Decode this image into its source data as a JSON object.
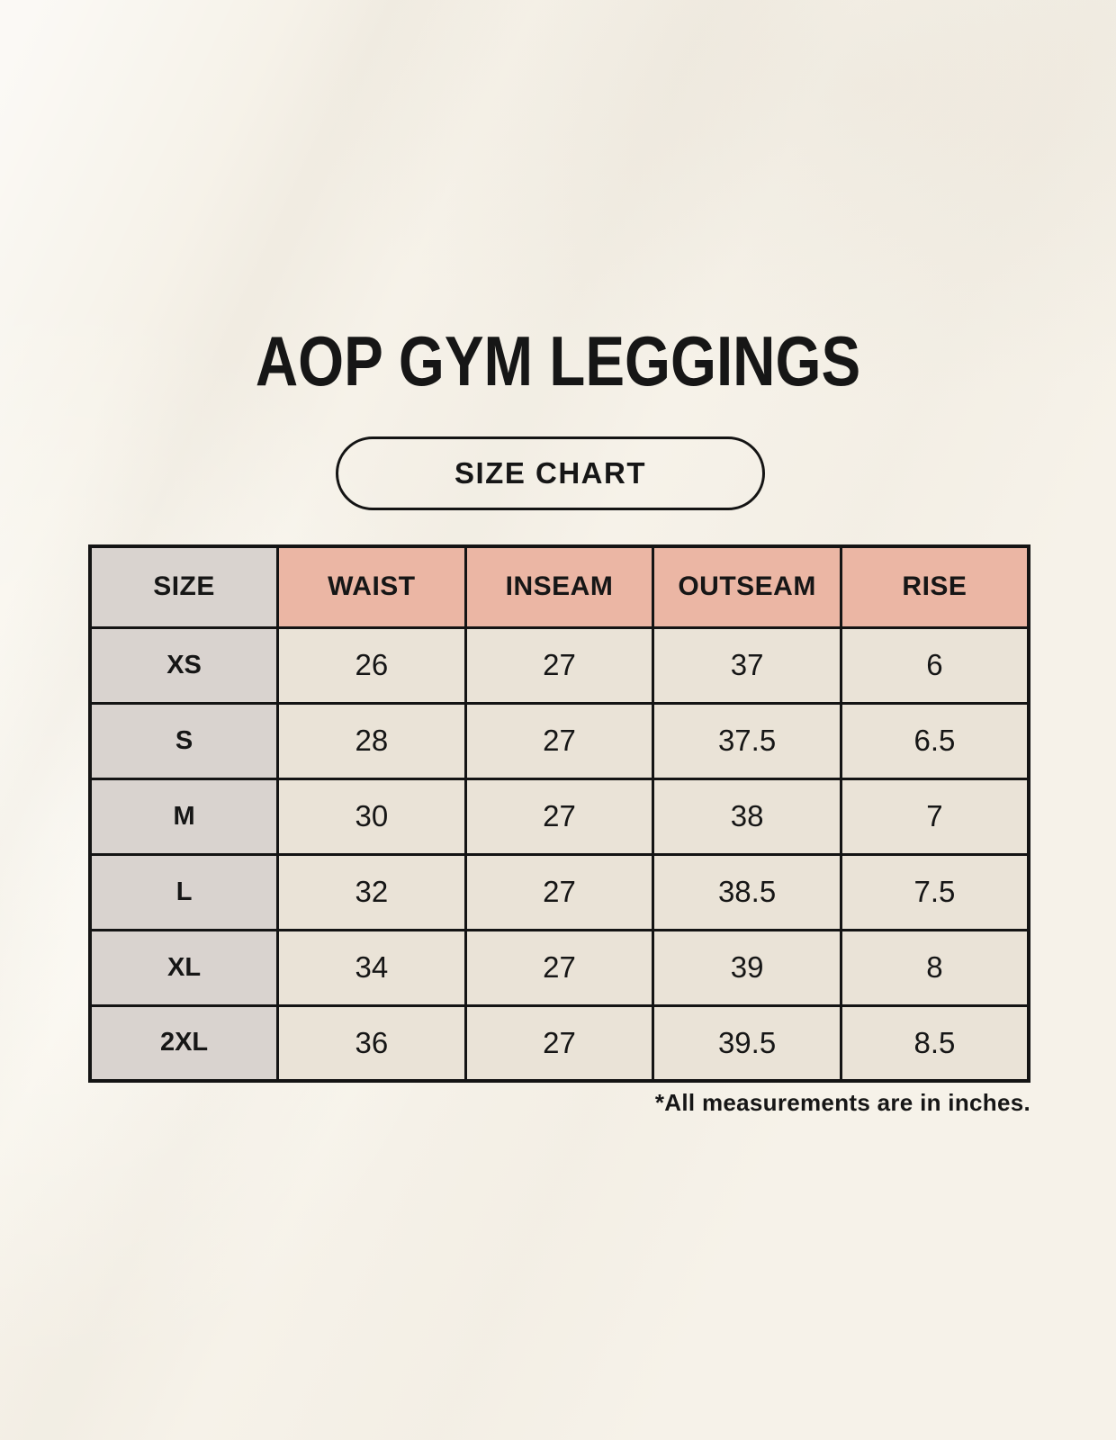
{
  "page": {
    "title": "AOP GYM LEGGINGS",
    "badge": "SIZE CHART",
    "footnote": "*All measurements are in inches."
  },
  "table": {
    "headers": [
      "SIZE",
      "WAIST",
      "INSEAM",
      "OUTSEAM",
      "RISE"
    ],
    "rows": [
      {
        "size": "XS",
        "waist": "26",
        "inseam": "27",
        "outseam": "37",
        "rise": "6"
      },
      {
        "size": "S",
        "waist": "28",
        "inseam": "27",
        "outseam": "37.5",
        "rise": "6.5"
      },
      {
        "size": "M",
        "waist": "30",
        "inseam": "27",
        "outseam": "38",
        "rise": "7"
      },
      {
        "size": "L",
        "waist": "32",
        "inseam": "27",
        "outseam": "38.5",
        "rise": "7.5"
      },
      {
        "size": "XL",
        "waist": "34",
        "inseam": "27",
        "outseam": "39",
        "rise": "8"
      },
      {
        "size": "2XL",
        "waist": "36",
        "inseam": "27",
        "outseam": "39.5",
        "rise": "8.5"
      }
    ]
  },
  "colors": {
    "background": "#f6f2e9",
    "header_pink": "#ebb6a4",
    "size_column_gray": "#d9d3cf",
    "cell_cream": "#eae3d7",
    "border_black": "#141414",
    "text_black": "#161616"
  },
  "chart_data": {
    "type": "table",
    "title": "AOP GYM LEGGINGS",
    "subtitle": "SIZE CHART",
    "columns": [
      "SIZE",
      "WAIST",
      "INSEAM",
      "OUTSEAM",
      "RISE"
    ],
    "rows": [
      [
        "XS",
        26,
        27,
        37,
        6
      ],
      [
        "S",
        28,
        27,
        37.5,
        6.5
      ],
      [
        "M",
        30,
        27,
        38,
        7
      ],
      [
        "L",
        32,
        27,
        38.5,
        7.5
      ],
      [
        "XL",
        34,
        27,
        39,
        8
      ],
      [
        "2XL",
        36,
        27,
        39.5,
        8.5
      ]
    ],
    "note": "*All measurements are in inches.",
    "units": "inches",
    "layout_hints": {
      "header_fill": "#ebb6a4",
      "size_column_fill": "#d9d3cf",
      "body_fill": "#eae3d7",
      "grid": "on"
    }
  }
}
